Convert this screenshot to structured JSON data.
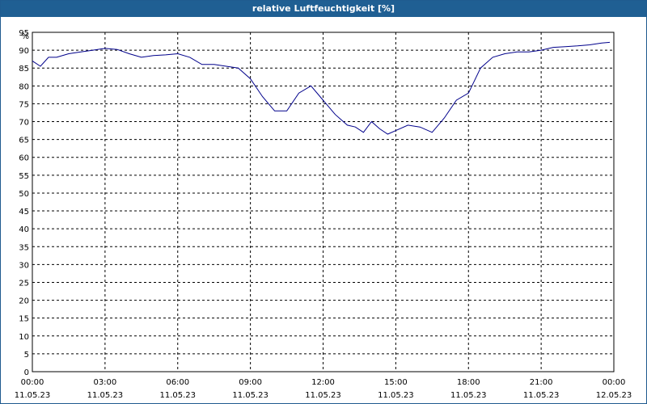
{
  "window": {
    "title": "relative Luftfeuchtigkeit [%]"
  },
  "colors": {
    "title_bar": "#1f5f93",
    "series": "#00008b",
    "grid": "#000000"
  },
  "chart_data": {
    "type": "line",
    "title": "relative Luftfeuchtigkeit [%]",
    "ylabel": "%",
    "ylim": [
      0,
      95
    ],
    "xlim": [
      "11.05.23 00:00",
      "12.05.23 00:00"
    ],
    "grid": true,
    "y_ticks": [
      "0",
      "5",
      "10",
      "15",
      "20",
      "25",
      "30",
      "35",
      "40",
      "45",
      "50",
      "55",
      "60",
      "65",
      "70",
      "75",
      "80",
      "85",
      "90",
      "95"
    ],
    "x_ticks": [
      {
        "time": "00:00",
        "date": "11.05.23"
      },
      {
        "time": "03:00",
        "date": "11.05.23"
      },
      {
        "time": "06:00",
        "date": "11.05.23"
      },
      {
        "time": "09:00",
        "date": "11.05.23"
      },
      {
        "time": "12:00",
        "date": "11.05.23"
      },
      {
        "time": "15:00",
        "date": "11.05.23"
      },
      {
        "time": "18:00",
        "date": "11.05.23"
      },
      {
        "time": "21:00",
        "date": "11.05.23"
      },
      {
        "time": "00:00",
        "date": "12.05.23"
      }
    ],
    "series": [
      {
        "x": [
          "00:00",
          "00:20",
          "00:40",
          "01:00",
          "01:30",
          "02:00",
          "02:30",
          "03:00",
          "03:30",
          "04:00",
          "04:30",
          "05:00",
          "05:30",
          "06:00",
          "06:30",
          "07:00",
          "07:30",
          "08:00",
          "08:30",
          "09:00",
          "09:30",
          "10:00",
          "10:30",
          "11:00",
          "11:30",
          "12:00",
          "12:30",
          "13:00",
          "13:20",
          "13:40",
          "14:00",
          "14:20",
          "14:40",
          "15:00",
          "15:30",
          "16:00",
          "16:30",
          "17:00",
          "17:30",
          "18:00",
          "18:30",
          "19:00",
          "19:30",
          "20:00",
          "20:30",
          "21:00",
          "21:30",
          "22:00",
          "22:30",
          "23:00",
          "23:30",
          "23:50"
        ],
        "values": [
          87,
          85.5,
          88,
          88,
          89,
          89.5,
          90,
          90.5,
          90.2,
          89,
          88,
          88.5,
          88.7,
          89,
          88,
          86,
          86,
          85.5,
          85,
          82,
          77,
          73,
          73,
          78,
          80,
          76,
          72,
          69,
          68.5,
          67,
          70,
          68,
          66.5,
          67.5,
          69,
          68.5,
          67,
          71,
          76,
          78,
          85,
          88,
          89,
          89.5,
          89.5,
          90,
          90.8,
          91,
          91.2,
          91.5,
          92,
          92.2
        ]
      }
    ]
  }
}
